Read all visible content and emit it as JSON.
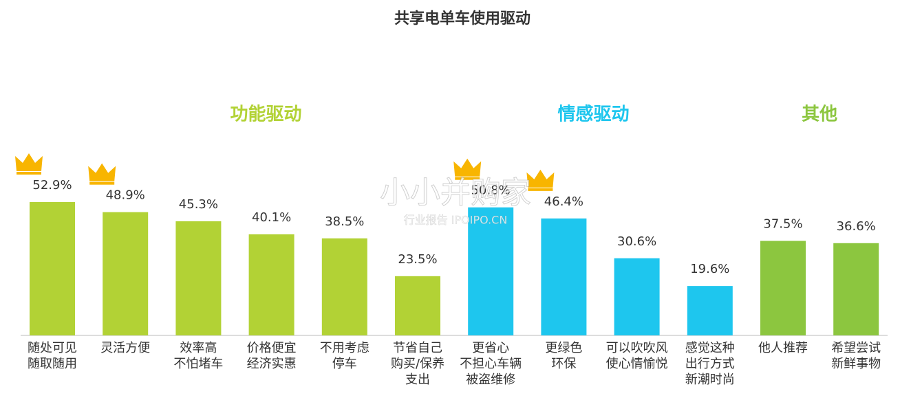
{
  "chart_data": {
    "type": "bar",
    "title": "共享电单车使用驱动",
    "categories": [
      "随处可见\n随取随用",
      "灵活方便",
      "效率高\n不怕堵车",
      "价格便宜\n经济实惠",
      "不用考虑\n停车",
      "节省自己\n购买/保养\n支出",
      "更省心\n不担心车辆\n被盗维修",
      "更绿色\n环保",
      "可以吹吹风\n使心情愉悦",
      "感觉这种\n出行方式\n新潮时尚",
      "他人推荐",
      "希望尝试\n新鲜事物"
    ],
    "series": [
      {
        "name": "功能驱动",
        "color": "#b2d235",
        "values": [
          52.9,
          48.9,
          45.3,
          40.1,
          38.5,
          23.5,
          null,
          null,
          null,
          null,
          null,
          null
        ],
        "value_labels": [
          "52.9%",
          "48.9%",
          "45.3%",
          "40.1%",
          "38.5%",
          "23.5%",
          null,
          null,
          null,
          null,
          null,
          null
        ]
      },
      {
        "name": "情感驱动",
        "color": "#1ec6ee",
        "values": [
          null,
          null,
          null,
          null,
          null,
          null,
          50.8,
          46.4,
          30.6,
          19.6,
          null,
          null
        ],
        "value_labels": [
          null,
          null,
          null,
          null,
          null,
          null,
          "50.8%",
          "46.4%",
          "30.6%",
          "19.6%",
          null,
          null
        ]
      },
      {
        "name": "其他",
        "color": "#8cc63f",
        "values": [
          null,
          null,
          null,
          null,
          null,
          null,
          null,
          null,
          null,
          null,
          37.5,
          36.6
        ],
        "value_labels": [
          null,
          null,
          null,
          null,
          null,
          null,
          null,
          null,
          null,
          null,
          "37.5%",
          "36.6%"
        ]
      }
    ],
    "watermark": [
      "小小并购家",
      "行业报告 IPOIPO.CN"
    ]
  }
}
